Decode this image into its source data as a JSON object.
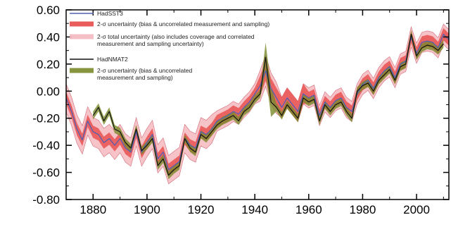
{
  "chart_data": {
    "type": "line",
    "xlim": [
      1870,
      2012
    ],
    "ylim": [
      -0.8,
      0.6
    ],
    "x_ticks": [
      "1880",
      "1900",
      "1920",
      "1940",
      "1960",
      "1980",
      "2000"
    ],
    "x_tick_values": [
      1880,
      1900,
      1920,
      1940,
      1960,
      1980,
      2000
    ],
    "y_ticks": [
      "0.60",
      "0.40",
      "0.20",
      "0.00",
      "-0.20",
      "-0.40",
      "-0.60",
      "-0.80"
    ],
    "y_tick_values": [
      0.6,
      0.4,
      0.2,
      0.0,
      -0.2,
      -0.4,
      -0.6,
      -0.8
    ],
    "legend": [
      {
        "kind": "line",
        "color": "#5060b0",
        "label": "HadSST3"
      },
      {
        "kind": "band",
        "color": "#e84a4a",
        "label": "2-σ uncertainty (bias & uncorrelated measurement and sampling)"
      },
      {
        "kind": "band",
        "color": "#f4b8c0",
        "label": "2-σ total uncertainty (also includes coverage and correlated measurement and sampling uncertainty)"
      },
      {
        "kind": "line",
        "color": "#111111",
        "label": "HadNMAT2"
      },
      {
        "kind": "band",
        "color": "#7a8a2a",
        "label": "2-σ uncertainty (bias & uncorrelated measurement and sampling)"
      }
    ],
    "series": [
      {
        "id": "hadsst3",
        "color": "#5060b0",
        "band_inner_color": "#e84a4a",
        "band_outer_color": "#f4b8c0",
        "x": [
          1870,
          1872,
          1874,
          1876,
          1878,
          1880,
          1882,
          1884,
          1886,
          1888,
          1890,
          1892,
          1894,
          1896,
          1898,
          1900,
          1902,
          1904,
          1906,
          1908,
          1910,
          1912,
          1914,
          1916,
          1918,
          1920,
          1922,
          1924,
          1926,
          1928,
          1930,
          1932,
          1934,
          1936,
          1938,
          1940,
          1942,
          1944,
          1946,
          1948,
          1950,
          1952,
          1954,
          1956,
          1958,
          1960,
          1962,
          1964,
          1966,
          1968,
          1970,
          1972,
          1974,
          1976,
          1978,
          1980,
          1982,
          1984,
          1986,
          1988,
          1990,
          1992,
          1994,
          1996,
          1998,
          2000,
          2002,
          2004,
          2006,
          2008,
          2010,
          2012
        ],
        "y": [
          -0.05,
          -0.15,
          -0.28,
          -0.36,
          -0.22,
          -0.3,
          -0.32,
          -0.38,
          -0.35,
          -0.4,
          -0.35,
          -0.42,
          -0.45,
          -0.3,
          -0.45,
          -0.38,
          -0.32,
          -0.5,
          -0.45,
          -0.58,
          -0.55,
          -0.52,
          -0.35,
          -0.4,
          -0.42,
          -0.3,
          -0.32,
          -0.28,
          -0.22,
          -0.2,
          -0.18,
          -0.15,
          -0.17,
          -0.12,
          -0.08,
          -0.02,
          0.04,
          0.15,
          0.02,
          -0.05,
          -0.12,
          -0.05,
          -0.1,
          -0.15,
          -0.02,
          -0.05,
          -0.03,
          -0.18,
          -0.08,
          -0.12,
          -0.07,
          -0.05,
          -0.12,
          -0.15,
          -0.02,
          0.05,
          0.08,
          0.02,
          0.1,
          0.15,
          0.18,
          0.1,
          0.2,
          0.22,
          0.4,
          0.28,
          0.36,
          0.37,
          0.36,
          0.32,
          0.42,
          0.38
        ]
      },
      {
        "id": "hadnmat2",
        "color": "#111111",
        "band_inner_color": "#7a8a2a",
        "x": [
          1880,
          1882,
          1884,
          1886,
          1888,
          1890,
          1892,
          1894,
          1896,
          1898,
          1900,
          1902,
          1904,
          1906,
          1908,
          1910,
          1912,
          1914,
          1916,
          1918,
          1920,
          1922,
          1924,
          1926,
          1928,
          1930,
          1932,
          1934,
          1936,
          1938,
          1940,
          1942,
          1944,
          1946,
          1948,
          1950,
          1952,
          1954,
          1956,
          1958,
          1960,
          1962,
          1964,
          1966,
          1968,
          1970,
          1972,
          1974,
          1976,
          1978,
          1980,
          1982,
          1984,
          1986,
          1988,
          1990,
          1992,
          1994,
          1996,
          1998,
          2000,
          2002,
          2004,
          2006,
          2008,
          2010
        ],
        "y": [
          -0.18,
          -0.12,
          -0.22,
          -0.15,
          -0.28,
          -0.3,
          -0.38,
          -0.42,
          -0.28,
          -0.44,
          -0.4,
          -0.35,
          -0.55,
          -0.5,
          -0.62,
          -0.58,
          -0.55,
          -0.35,
          -0.42,
          -0.45,
          -0.32,
          -0.35,
          -0.3,
          -0.25,
          -0.22,
          -0.2,
          -0.18,
          -0.22,
          -0.15,
          -0.12,
          -0.06,
          -0.02,
          0.25,
          -0.08,
          -0.12,
          -0.18,
          -0.1,
          -0.15,
          -0.2,
          -0.05,
          -0.08,
          -0.06,
          -0.22,
          -0.1,
          -0.15,
          -0.1,
          -0.08,
          -0.15,
          -0.2,
          0.0,
          0.04,
          0.06,
          0.0,
          0.08,
          0.12,
          0.16,
          0.08,
          0.18,
          0.2,
          0.42,
          0.26,
          0.32,
          0.34,
          0.33,
          0.3,
          0.35
        ]
      }
    ]
  }
}
